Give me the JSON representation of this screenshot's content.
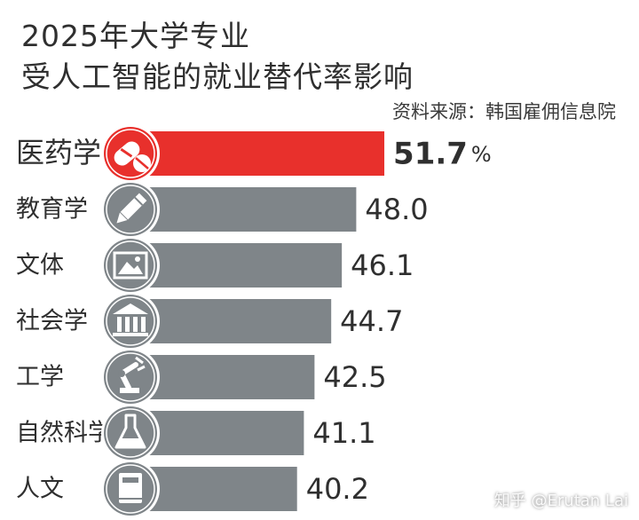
{
  "title_lines": [
    "2025年大学专业",
    "受人工智能的就业替代率影响"
  ],
  "source": "资料来源：韩国雇佣信息院",
  "watermark": "知乎 @Erutan Lai",
  "colors": {
    "highlight": "#e8302c",
    "bar": "#7f8589",
    "icon": "#7f8589",
    "text": "#2f2f2f"
  },
  "chart_data": {
    "type": "bar",
    "orientation": "horizontal",
    "categories": [
      "医药学",
      "教育学",
      "文体",
      "社会学",
      "工学",
      "自然科学",
      "人文"
    ],
    "values": [
      51.7,
      48.0,
      46.1,
      44.7,
      42.5,
      41.1,
      40.2
    ],
    "value_labels": [
      "51.7",
      "48.0",
      "46.1",
      "44.7",
      "42.5",
      "41.1",
      "40.2"
    ],
    "unit": "%",
    "highlight_index": 0,
    "icons": [
      "pill-icon",
      "pencil-icon",
      "picture-icon",
      "museum-icon",
      "robot-arm-icon",
      "flask-icon",
      "book-icon"
    ],
    "title": "2025年大学专业受人工智能的就业替代率影响",
    "xlabel": "",
    "ylabel": "",
    "grid": false,
    "legend": "none"
  }
}
